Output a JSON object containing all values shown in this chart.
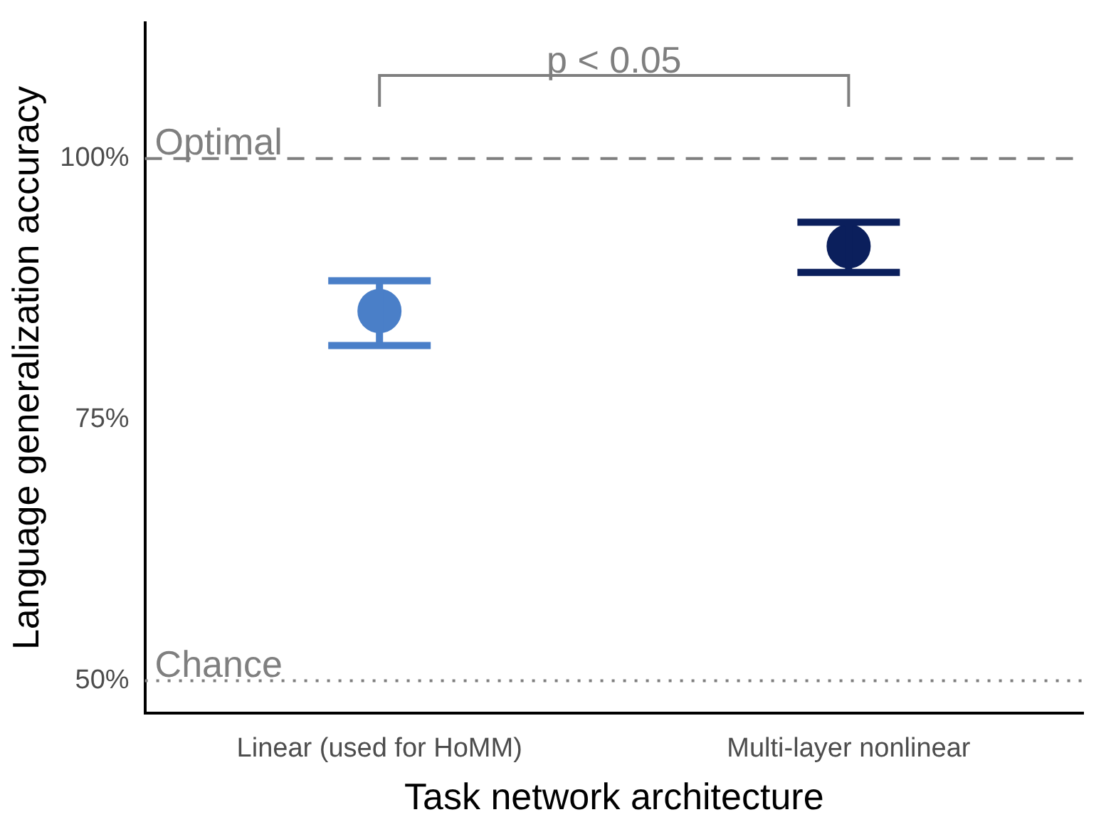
{
  "chart_data": {
    "type": "scatter",
    "xlabel": "Task network architecture",
    "ylabel": "Language generalization accuracy",
    "categories": [
      "Linear (used for HoMM)",
      "Multi-layer nonlinear"
    ],
    "values": [
      85.4,
      91.6
    ],
    "errors": [
      [
        82.1,
        88.3
      ],
      [
        89.1,
        93.9
      ]
    ],
    "colors": [
      "#4a7fc8",
      "#0b1f5c"
    ],
    "ylim": [
      46.9,
      113
    ],
    "yticks": [
      {
        "value": 50,
        "label": "50%"
      },
      {
        "value": 75,
        "label": "75%"
      },
      {
        "value": 100,
        "label": "100%"
      }
    ],
    "ref_lines": [
      {
        "axis": "y",
        "value": 100,
        "label": "Optimal",
        "color": "#7f7f7f",
        "line_style": "dashed"
      },
      {
        "axis": "y",
        "value": 50,
        "label": "Chance",
        "color": "#7f7f7f",
        "line_style": "dotted"
      }
    ],
    "annotations": [
      "p < 0.05"
    ],
    "grid": false,
    "legend": false,
    "marker": "circle"
  }
}
